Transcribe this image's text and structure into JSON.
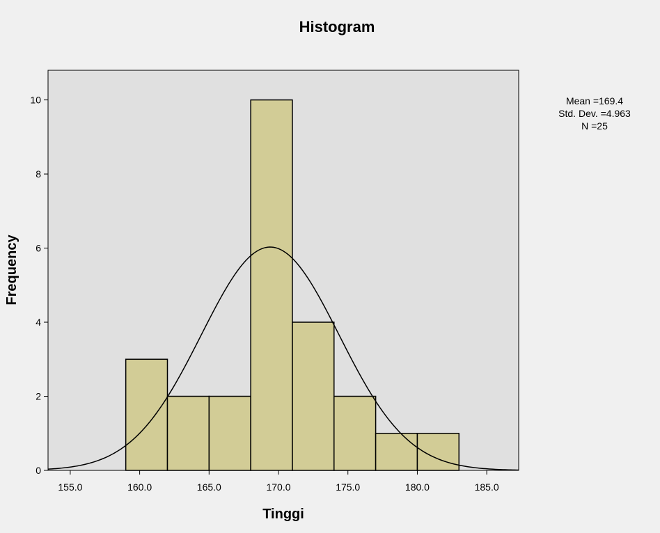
{
  "chart_data": {
    "type": "bar",
    "title": "Histogram",
    "xlabel": "Tinggi",
    "ylabel": "Frequency",
    "xlim": [
      153.4,
      187.3
    ],
    "ylim": [
      0,
      10.8
    ],
    "x_ticks": [
      155.0,
      160.0,
      165.0,
      170.0,
      175.0,
      180.0,
      185.0
    ],
    "x_tick_labels": [
      "155.0",
      "160.0",
      "165.0",
      "170.0",
      "175.0",
      "180.0",
      "185.0"
    ],
    "y_ticks": [
      0,
      2,
      4,
      6,
      8,
      10
    ],
    "y_tick_labels": [
      "0",
      "2",
      "4",
      "6",
      "8",
      "10"
    ],
    "bins": [
      {
        "start": 159.0,
        "end": 162.0,
        "value": 3
      },
      {
        "start": 162.0,
        "end": 165.0,
        "value": 2
      },
      {
        "start": 165.0,
        "end": 168.0,
        "value": 2
      },
      {
        "start": 168.0,
        "end": 171.0,
        "value": 10
      },
      {
        "start": 171.0,
        "end": 174.0,
        "value": 4
      },
      {
        "start": 174.0,
        "end": 177.0,
        "value": 2
      },
      {
        "start": 177.0,
        "end": 180.0,
        "value": 1
      },
      {
        "start": 180.0,
        "end": 183.0,
        "value": 1
      }
    ],
    "normal_curve": {
      "mean": 169.4,
      "std_dev": 4.963,
      "n": 25
    },
    "grid": false,
    "stats_box": {
      "mean_label": "Mean =169.4",
      "std_label": "Std. Dev. =4.963",
      "n_label": "N =25"
    },
    "colors": {
      "background": "#f0f0f0",
      "plot_area": "#e0e0e0",
      "bar_fill": "#d2cc96",
      "bar_stroke": "#000000",
      "curve": "#000000"
    }
  }
}
